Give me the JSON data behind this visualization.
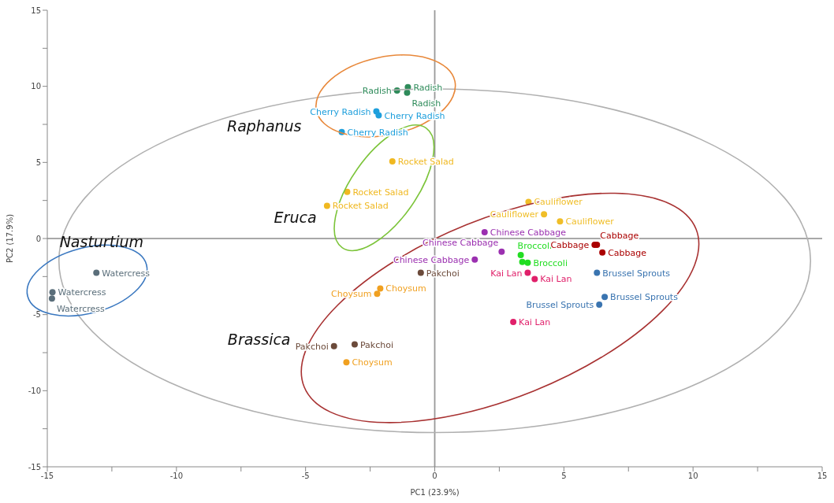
{
  "chart_data": {
    "type": "scatter",
    "xlabel": "PC1 (23.9%)",
    "ylabel": "PC2 (17.9%)",
    "xlim": [
      -15,
      15
    ],
    "ylim": [
      -15,
      15
    ],
    "xticks": [
      -15,
      {
        "value": -12.5,
        "label": null
      },
      -10,
      {
        "value": -7.5,
        "label": null
      },
      -5,
      {
        "value": -2.5,
        "label": null
      },
      0,
      {
        "value": 2.5,
        "label": null
      },
      5,
      {
        "value": 7.5,
        "label": null
      },
      10,
      {
        "value": 12.5,
        "label": null
      },
      15
    ],
    "yticks": [
      -15,
      {
        "value": -12.5,
        "label": null
      },
      -10,
      {
        "value": -7.5,
        "label": null
      },
      -5,
      {
        "value": -2.5,
        "label": null
      },
      0,
      {
        "value": 2.5,
        "label": null
      },
      5,
      {
        "value": 7.5,
        "label": null
      },
      10,
      {
        "value": 12.5,
        "label": null
      },
      15
    ],
    "grid": false,
    "legend": false,
    "marker": "circle",
    "ref_lines": [
      {
        "axis": "x",
        "value": 0,
        "color": "#999999"
      },
      {
        "axis": "y",
        "value": 0,
        "color": "#a8a8a8"
      }
    ],
    "annotations": [
      "Raphanus",
      "Eruca",
      "Brassica",
      "Nasturtium"
    ],
    "series": [
      {
        "name": "Radish",
        "color": "#2e8b5a",
        "x": [
          -1.46,
          -1.04,
          -1.07
        ],
        "values": [
          9.73,
          9.94,
          9.58
        ]
      },
      {
        "name": "Cherry Radish",
        "color": "#1e9fdc",
        "x": [
          -2.26,
          -2.17,
          -3.6
        ],
        "values": [
          8.35,
          8.09,
          7.0
        ]
      },
      {
        "name": "Rocket Salad",
        "color": "#f0b820",
        "x": [
          -1.64,
          -3.39,
          -4.17
        ],
        "values": [
          5.07,
          3.07,
          2.15
        ]
      },
      {
        "name": "Cauliflower",
        "color": "#f0be28",
        "x": [
          3.63,
          4.23,
          4.85
        ],
        "values": [
          2.41,
          1.59,
          1.13
        ]
      },
      {
        "name": "Chinese Cabbage",
        "color": "#9b30b0",
        "x": [
          1.93,
          2.59,
          1.55
        ],
        "values": [
          0.41,
          -0.87,
          -1.38
        ]
      },
      {
        "name": "Broccoli",
        "color": "#22dd22",
        "x": [
          3.33,
          3.39,
          3.6
        ],
        "values": [
          -1.08,
          -1.54,
          -1.59
        ]
      },
      {
        "name": "Cabbage",
        "color": "#aa0000",
        "x": [
          6.19,
          6.28,
          6.49
        ],
        "values": [
          -0.41,
          -0.41,
          -0.92
        ]
      },
      {
        "name": "Kai Lan",
        "color": "#e0206a",
        "x": [
          3.6,
          3.87,
          3.04
        ],
        "values": [
          -2.25,
          -2.66,
          -5.48
        ]
      },
      {
        "name": "Brussel Sprouts",
        "color": "#3a74b0",
        "x": [
          6.28,
          6.58,
          6.37
        ],
        "values": [
          -2.25,
          -3.84,
          -4.35
        ]
      },
      {
        "name": "Pakchoi",
        "color": "#6b4a3a",
        "x": [
          -0.54,
          -3.9,
          -3.1
        ],
        "values": [
          -2.25,
          -7.07,
          -6.96
        ]
      },
      {
        "name": "Choysum",
        "color": "#f0a020",
        "x": [
          -2.11,
          -2.23,
          -3.42
        ],
        "values": [
          -3.28,
          -3.64,
          -8.14
        ]
      },
      {
        "name": "Watercress",
        "color": "#5a6e7a",
        "x": [
          -13.1,
          -14.8,
          -14.82
        ],
        "values": [
          -2.25,
          -3.53,
          -3.94
        ]
      }
    ]
  }
}
